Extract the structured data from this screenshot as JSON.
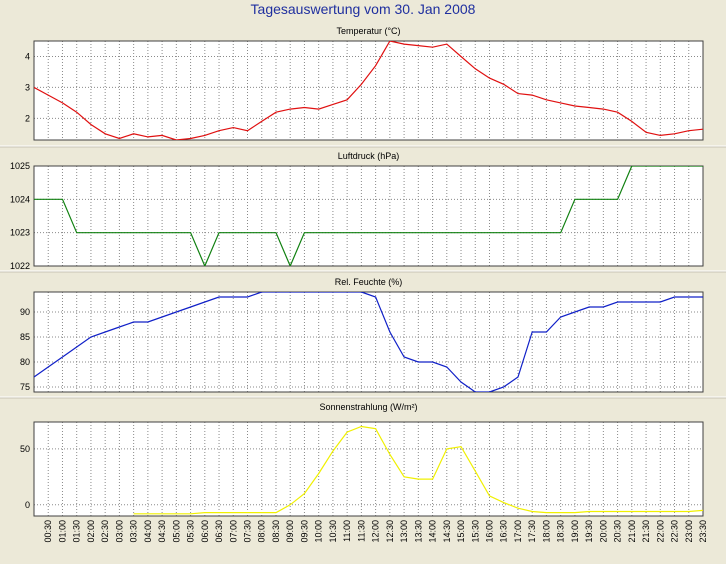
{
  "page": {
    "title": "Tagesauswertung vom 30. Jan 2008"
  },
  "colors": {
    "background": "#ece9d8",
    "plot_bg": "#ffffff",
    "title": "#1f2f9f",
    "grid": "#8a8a8a",
    "divider": "#c8c4b4"
  },
  "chart_data": [
    {
      "type": "line",
      "title": "Temperatur (°C)",
      "color": "#e01010",
      "ylim": [
        1.3,
        4.5
      ],
      "yticks": [
        2,
        3,
        4
      ],
      "x": [
        0,
        0.5,
        1,
        1.5,
        2,
        2.5,
        3,
        3.5,
        4,
        4.5,
        5,
        5.5,
        6,
        6.5,
        7,
        7.5,
        8,
        8.5,
        9,
        9.5,
        10,
        10.5,
        11,
        11.5,
        12,
        12.5,
        13,
        13.5,
        14,
        14.5,
        15,
        15.5,
        16,
        16.5,
        17,
        17.5,
        18,
        18.5,
        19,
        19.5,
        20,
        20.5,
        21,
        21.5,
        22,
        22.5,
        23,
        23.5
      ],
      "values": [
        3.0,
        2.75,
        2.5,
        2.2,
        1.8,
        1.5,
        1.35,
        1.5,
        1.4,
        1.45,
        1.3,
        1.35,
        1.45,
        1.6,
        1.7,
        1.6,
        1.9,
        2.2,
        2.3,
        2.35,
        2.3,
        2.45,
        2.6,
        3.1,
        3.7,
        4.5,
        4.4,
        4.35,
        4.3,
        4.4,
        4.0,
        3.6,
        3.3,
        3.1,
        2.8,
        2.75,
        2.6,
        2.5,
        2.4,
        2.35,
        2.3,
        2.2,
        1.9,
        1.55,
        1.45,
        1.5,
        1.6,
        1.65
      ]
    },
    {
      "type": "line",
      "title": "Luftdruck (hPa)",
      "color": "#108010",
      "ylim": [
        1022,
        1025
      ],
      "yticks": [
        1022,
        1023,
        1024,
        1025
      ],
      "x": [
        0,
        0.5,
        1,
        1.5,
        2,
        2.5,
        3,
        3.5,
        4,
        4.5,
        5,
        5.5,
        6,
        6.5,
        7,
        7.5,
        8,
        8.5,
        9,
        9.5,
        10,
        10.5,
        11,
        11.5,
        12,
        12.5,
        13,
        13.5,
        14,
        14.5,
        15,
        15.5,
        16,
        16.5,
        17,
        17.5,
        18,
        18.5,
        19,
        19.5,
        20,
        20.5,
        21,
        21.5,
        22,
        22.5,
        23,
        23.5
      ],
      "values": [
        1024,
        1024,
        1024,
        1023,
        1023,
        1023,
        1023,
        1023,
        1023,
        1023,
        1023,
        1023,
        1022,
        1023,
        1023,
        1023,
        1023,
        1023,
        1022,
        1023,
        1023,
        1023,
        1023,
        1023,
        1023,
        1023,
        1023,
        1023,
        1023,
        1023,
        1023,
        1023,
        1023,
        1023,
        1023,
        1023,
        1023,
        1023,
        1024,
        1024,
        1024,
        1024,
        1025,
        1025,
        1025,
        1025,
        1025,
        1025
      ]
    },
    {
      "type": "line",
      "title": "Rel. Feuchte (%)",
      "color": "#1020c8",
      "ylim": [
        74,
        94
      ],
      "yticks": [
        75,
        80,
        85,
        90
      ],
      "x": [
        0,
        0.5,
        1,
        1.5,
        2,
        2.5,
        3,
        3.5,
        4,
        4.5,
        5,
        5.5,
        6,
        6.5,
        7,
        7.5,
        8,
        8.5,
        9,
        9.5,
        10,
        10.5,
        11,
        11.5,
        12,
        12.5,
        13,
        13.5,
        14,
        14.5,
        15,
        15.5,
        16,
        16.5,
        17,
        17.5,
        18,
        18.5,
        19,
        19.5,
        20,
        20.5,
        21,
        21.5,
        22,
        22.5,
        23,
        23.5
      ],
      "values": [
        77,
        79,
        81,
        83,
        85,
        86,
        87,
        88,
        88,
        89,
        90,
        91,
        92,
        93,
        93,
        93,
        94,
        94,
        94,
        94,
        94,
        94,
        94,
        94,
        93,
        86,
        81,
        80,
        80,
        79,
        76,
        74,
        74,
        75,
        77,
        86,
        86,
        89,
        90,
        91,
        91,
        92,
        92,
        92,
        92,
        93,
        93,
        93
      ]
    },
    {
      "type": "line",
      "title": "Sonnenstrahlung (W/m²)",
      "color": "#f0f000",
      "ylim": [
        -10,
        74
      ],
      "yticks": [
        0,
        50
      ],
      "x": [
        0,
        0.5,
        1,
        1.5,
        2,
        2.5,
        3,
        3.5,
        4,
        4.5,
        5,
        5.5,
        6,
        6.5,
        7,
        7.5,
        8,
        8.5,
        9,
        9.5,
        10,
        10.5,
        11,
        11.5,
        12,
        12.5,
        13,
        13.5,
        14,
        14.5,
        15,
        15.5,
        16,
        16.5,
        17,
        17.5,
        18,
        18.5,
        19,
        19.5,
        20,
        20.5,
        21,
        21.5,
        22,
        22.5,
        23,
        23.5
      ],
      "values": [
        null,
        null,
        null,
        null,
        null,
        null,
        null,
        -8,
        -8,
        -8,
        -8,
        -8,
        -7,
        -7,
        -7,
        -7,
        -7,
        -7,
        0,
        10,
        28,
        48,
        65,
        70,
        68,
        45,
        25,
        23,
        23,
        50,
        52,
        30,
        8,
        2,
        -3,
        -6,
        -7,
        -7,
        -7,
        -6,
        -6,
        -6,
        -6,
        -6,
        -6,
        -6,
        -6,
        -5
      ]
    }
  ],
  "x_axis": {
    "labels": [
      "00:30",
      "01:00",
      "01:30",
      "02:00",
      "02:30",
      "03:00",
      "03:30",
      "04:00",
      "04:30",
      "05:00",
      "05:30",
      "06:00",
      "06:30",
      "07:00",
      "07:30",
      "08:00",
      "08:30",
      "09:00",
      "09:30",
      "10:00",
      "10:30",
      "11:00",
      "11:30",
      "12:00",
      "12:30",
      "13:00",
      "13:30",
      "14:00",
      "14:30",
      "15:00",
      "15:30",
      "16:00",
      "16:30",
      "17:00",
      "17:30",
      "18:00",
      "18:30",
      "19:00",
      "19:30",
      "20:00",
      "20:30",
      "21:00",
      "21:30",
      "22:00",
      "22:30",
      "23:00",
      "23:30"
    ]
  }
}
